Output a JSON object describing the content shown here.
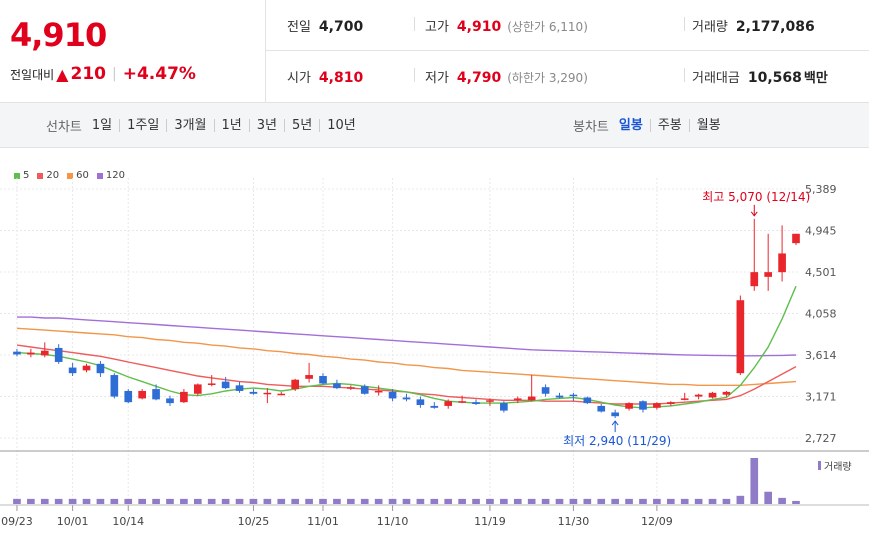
{
  "header": {
    "current_price": "4,910",
    "change_label": "전일대비",
    "change_arrow": "▲",
    "change_amount": "210",
    "change_pct": "+4.47%",
    "stats": {
      "prev_close": {
        "label": "전일",
        "value": "4,700"
      },
      "high": {
        "label": "고가",
        "value": "4,910",
        "sub": "(상한가 6,110)"
      },
      "volume": {
        "label": "거래량",
        "value": "2,177,086"
      },
      "open": {
        "label": "시가",
        "value": "4,810"
      },
      "low": {
        "label": "저가",
        "value": "4,790",
        "sub": "(하한가 3,290)"
      },
      "amount": {
        "label": "거래대금",
        "value": "10,568",
        "unit": "백만"
      }
    }
  },
  "toolbar": {
    "line_label": "선차트",
    "line_items": [
      "1일",
      "1주일",
      "3개월",
      "1년",
      "3년",
      "5년",
      "10년"
    ],
    "candle_label": "봉차트",
    "candle_items": [
      "일봉",
      "주봉",
      "월봉"
    ],
    "candle_active": "일봉"
  },
  "colors": {
    "up": "#e8262b",
    "down": "#2f6dd6",
    "ma5": "#5fbf4d",
    "ma20": "#ef5b5b",
    "ma60": "#f2964a",
    "ma120": "#a26fd8",
    "volume": "#8f7bc7"
  },
  "chart_data": {
    "type": "candlestick",
    "y_ticks": [
      "5,389",
      "4,945",
      "4,501",
      "4,058",
      "3,614",
      "3,171",
      "2,727"
    ],
    "ylim": [
      2727,
      5389
    ],
    "x_ticks": [
      {
        "label": "09/23",
        "index": 0
      },
      {
        "label": "10/01",
        "index": 4
      },
      {
        "label": "10/14",
        "index": 8
      },
      {
        "label": "10/25",
        "index": 17
      },
      {
        "label": "11/01",
        "index": 22
      },
      {
        "label": "11/10",
        "index": 27
      },
      {
        "label": "11/19",
        "index": 34
      },
      {
        "label": "11/30",
        "index": 40
      },
      {
        "label": "12/09",
        "index": 46
      }
    ],
    "legend": [
      {
        "name": "5",
        "color": "#5fbf4d"
      },
      {
        "name": "20",
        "color": "#ef5b5b"
      },
      {
        "name": "60",
        "color": "#f2964a"
      },
      {
        "name": "120",
        "color": "#a26fd8"
      }
    ],
    "annotations": {
      "max": "최고 5,070 (12/14)",
      "min": "최저 2,940 (11/29)"
    },
    "volume_legend": "거래량",
    "candles": [
      {
        "o": 3650,
        "h": 3680,
        "l": 3600,
        "c": 3620
      },
      {
        "o": 3620,
        "h": 3680,
        "l": 3590,
        "c": 3640
      },
      {
        "o": 3610,
        "h": 3750,
        "l": 3590,
        "c": 3660
      },
      {
        "o": 3690,
        "h": 3730,
        "l": 3520,
        "c": 3540
      },
      {
        "o": 3480,
        "h": 3530,
        "l": 3390,
        "c": 3420
      },
      {
        "o": 3450,
        "h": 3520,
        "l": 3430,
        "c": 3500
      },
      {
        "o": 3520,
        "h": 3550,
        "l": 3380,
        "c": 3420
      },
      {
        "o": 3400,
        "h": 3420,
        "l": 3150,
        "c": 3170
      },
      {
        "o": 3230,
        "h": 3250,
        "l": 3100,
        "c": 3110
      },
      {
        "o": 3150,
        "h": 3250,
        "l": 3140,
        "c": 3230
      },
      {
        "o": 3250,
        "h": 3300,
        "l": 3130,
        "c": 3140
      },
      {
        "o": 3150,
        "h": 3180,
        "l": 3070,
        "c": 3100
      },
      {
        "o": 3110,
        "h": 3250,
        "l": 3100,
        "c": 3220
      },
      {
        "o": 3200,
        "h": 3310,
        "l": 3180,
        "c": 3300
      },
      {
        "o": 3300,
        "h": 3400,
        "l": 3280,
        "c": 3310
      },
      {
        "o": 3330,
        "h": 3380,
        "l": 3250,
        "c": 3260
      },
      {
        "o": 3290,
        "h": 3330,
        "l": 3210,
        "c": 3230
      },
      {
        "o": 3220,
        "h": 3250,
        "l": 3190,
        "c": 3200
      },
      {
        "o": 3210,
        "h": 3260,
        "l": 3100,
        "c": 3210
      },
      {
        "o": 3200,
        "h": 3220,
        "l": 3190,
        "c": 3200
      },
      {
        "o": 3250,
        "h": 3360,
        "l": 3230,
        "c": 3350
      },
      {
        "o": 3360,
        "h": 3530,
        "l": 3320,
        "c": 3400
      },
      {
        "o": 3390,
        "h": 3420,
        "l": 3300,
        "c": 3310
      },
      {
        "o": 3310,
        "h": 3350,
        "l": 3250,
        "c": 3260
      },
      {
        "o": 3260,
        "h": 3290,
        "l": 3240,
        "c": 3270
      },
      {
        "o": 3280,
        "h": 3300,
        "l": 3190,
        "c": 3200
      },
      {
        "o": 3220,
        "h": 3290,
        "l": 3180,
        "c": 3230
      },
      {
        "o": 3220,
        "h": 3250,
        "l": 3120,
        "c": 3150
      },
      {
        "o": 3160,
        "h": 3200,
        "l": 3120,
        "c": 3140
      },
      {
        "o": 3140,
        "h": 3170,
        "l": 3050,
        "c": 3080
      },
      {
        "o": 3070,
        "h": 3110,
        "l": 3040,
        "c": 3050
      },
      {
        "o": 3070,
        "h": 3140,
        "l": 3040,
        "c": 3120
      },
      {
        "o": 3110,
        "h": 3180,
        "l": 3100,
        "c": 3120
      },
      {
        "o": 3110,
        "h": 3140,
        "l": 3080,
        "c": 3090
      },
      {
        "o": 3120,
        "h": 3150,
        "l": 3070,
        "c": 3130
      },
      {
        "o": 3100,
        "h": 3120,
        "l": 3000,
        "c": 3020
      },
      {
        "o": 3140,
        "h": 3170,
        "l": 3100,
        "c": 3150
      },
      {
        "o": 3130,
        "h": 3400,
        "l": 3120,
        "c": 3170
      },
      {
        "o": 3270,
        "h": 3300,
        "l": 3170,
        "c": 3200
      },
      {
        "o": 3180,
        "h": 3210,
        "l": 3150,
        "c": 3160
      },
      {
        "o": 3190,
        "h": 3210,
        "l": 3120,
        "c": 3180
      },
      {
        "o": 3160,
        "h": 3170,
        "l": 3090,
        "c": 3100
      },
      {
        "o": 3070,
        "h": 3090,
        "l": 3000,
        "c": 3010
      },
      {
        "o": 3000,
        "h": 3030,
        "l": 2940,
        "c": 2960
      },
      {
        "o": 3040,
        "h": 3110,
        "l": 3020,
        "c": 3100
      },
      {
        "o": 3120,
        "h": 3130,
        "l": 3000,
        "c": 3030
      },
      {
        "o": 3050,
        "h": 3110,
        "l": 3030,
        "c": 3100
      },
      {
        "o": 3090,
        "h": 3120,
        "l": 3070,
        "c": 3110
      },
      {
        "o": 3140,
        "h": 3210,
        "l": 3130,
        "c": 3150
      },
      {
        "o": 3170,
        "h": 3200,
        "l": 3140,
        "c": 3190
      },
      {
        "o": 3160,
        "h": 3220,
        "l": 3150,
        "c": 3210
      },
      {
        "o": 3190,
        "h": 3230,
        "l": 3170,
        "c": 3220
      },
      {
        "o": 3420,
        "h": 4250,
        "l": 3400,
        "c": 4200
      },
      {
        "o": 4350,
        "h": 5070,
        "l": 4300,
        "c": 4500
      },
      {
        "o": 4450,
        "h": 4910,
        "l": 4300,
        "c": 4500
      },
      {
        "o": 4500,
        "h": 5000,
        "l": 4400,
        "c": 4700
      },
      {
        "o": 4810,
        "h": 4910,
        "l": 4790,
        "c": 4910
      }
    ],
    "ma5": [
      3640,
      3630,
      3620,
      3600,
      3570,
      3540,
      3500,
      3440,
      3380,
      3330,
      3280,
      3230,
      3190,
      3180,
      3200,
      3230,
      3250,
      3260,
      3250,
      3230,
      3250,
      3280,
      3300,
      3310,
      3300,
      3280,
      3260,
      3240,
      3220,
      3190,
      3150,
      3120,
      3110,
      3100,
      3100,
      3100,
      3110,
      3120,
      3140,
      3150,
      3160,
      3140,
      3110,
      3080,
      3060,
      3050,
      3060,
      3070,
      3090,
      3110,
      3140,
      3160,
      3290,
      3480,
      3700,
      4000,
      4350
    ],
    "ma20": [
      3720,
      3700,
      3680,
      3660,
      3640,
      3620,
      3600,
      3570,
      3540,
      3510,
      3480,
      3450,
      3420,
      3390,
      3370,
      3350,
      3330,
      3320,
      3300,
      3290,
      3280,
      3280,
      3280,
      3270,
      3260,
      3250,
      3240,
      3230,
      3220,
      3200,
      3190,
      3170,
      3160,
      3150,
      3140,
      3130,
      3130,
      3130,
      3120,
      3120,
      3120,
      3110,
      3100,
      3090,
      3090,
      3090,
      3090,
      3100,
      3110,
      3120,
      3130,
      3140,
      3180,
      3250,
      3330,
      3410,
      3490
    ],
    "ma60": [
      3900,
      3890,
      3880,
      3870,
      3860,
      3850,
      3840,
      3830,
      3810,
      3800,
      3780,
      3770,
      3750,
      3740,
      3720,
      3710,
      3690,
      3680,
      3660,
      3650,
      3630,
      3620,
      3600,
      3590,
      3570,
      3560,
      3540,
      3530,
      3510,
      3500,
      3480,
      3470,
      3450,
      3440,
      3430,
      3420,
      3410,
      3400,
      3390,
      3380,
      3370,
      3360,
      3350,
      3340,
      3330,
      3320,
      3310,
      3300,
      3300,
      3290,
      3290,
      3290,
      3290,
      3300,
      3310,
      3320,
      3330
    ],
    "ma120": [
      4020,
      4020,
      4010,
      4010,
      4000,
      3990,
      3980,
      3970,
      3960,
      3950,
      3940,
      3930,
      3920,
      3910,
      3900,
      3890,
      3880,
      3870,
      3860,
      3850,
      3840,
      3830,
      3820,
      3810,
      3800,
      3790,
      3780,
      3770,
      3760,
      3750,
      3740,
      3730,
      3720,
      3710,
      3700,
      3690,
      3680,
      3670,
      3665,
      3660,
      3655,
      3650,
      3645,
      3640,
      3635,
      3630,
      3625,
      3620,
      3615,
      3612,
      3610,
      3608,
      3606,
      3606,
      3608,
      3610,
      3614
    ],
    "volume": [
      5,
      5,
      5,
      5,
      5,
      5,
      5,
      5,
      5,
      5,
      5,
      5,
      5,
      5,
      5,
      5,
      5,
      5,
      5,
      5,
      5,
      5,
      5,
      5,
      5,
      5,
      5,
      5,
      5,
      5,
      5,
      5,
      5,
      5,
      5,
      5,
      5,
      5,
      5,
      5,
      5,
      5,
      5,
      5,
      5,
      5,
      5,
      5,
      5,
      5,
      5,
      5,
      8,
      45,
      12,
      6,
      3
    ]
  }
}
